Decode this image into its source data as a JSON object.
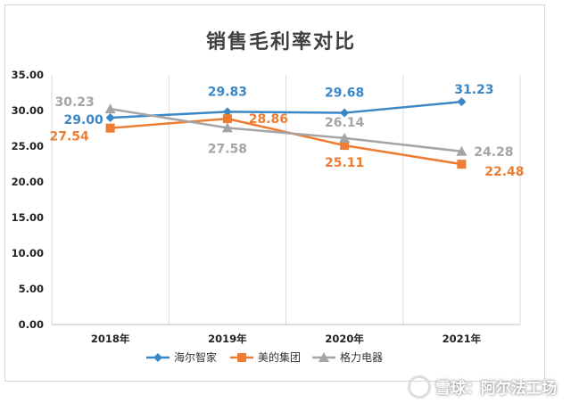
{
  "chart_data": {
    "type": "line",
    "title": "销售毛利率对比",
    "categories": [
      "2018年",
      "2019年",
      "2020年",
      "2021年"
    ],
    "ylim": [
      0,
      35
    ],
    "yticks": [
      "0.00",
      "5.00",
      "10.00",
      "15.00",
      "20.00",
      "25.00",
      "30.00",
      "35.00"
    ],
    "grid": "vertical",
    "legend_position": "bottom",
    "series": [
      {
        "name": "海尔智家",
        "color": "#3a87c8",
        "marker": "diamond",
        "values": [
          29.0,
          29.83,
          29.68,
          31.23
        ],
        "labels": [
          "29.00",
          "29.83",
          "29.68",
          "31.23"
        ]
      },
      {
        "name": "美的集团",
        "color": "#ed7d31",
        "marker": "square",
        "values": [
          27.54,
          28.86,
          25.11,
          22.48
        ],
        "labels": [
          "27.54",
          "28.86",
          "25.11",
          "22.48"
        ]
      },
      {
        "name": "格力电器",
        "color": "#a5a5a5",
        "marker": "triangle",
        "values": [
          30.23,
          27.58,
          26.14,
          24.28
        ],
        "labels": [
          "30.23",
          "27.58",
          "26.14",
          "24.28"
        ]
      }
    ]
  },
  "watermark": {
    "text": "雪球：阿尔法工场"
  }
}
